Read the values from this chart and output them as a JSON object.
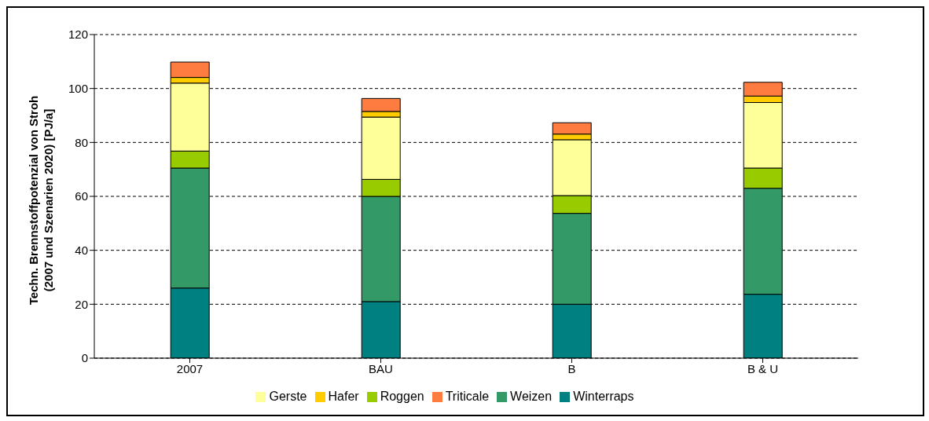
{
  "chart_data": {
    "type": "bar",
    "stacked": true,
    "ylabel": "Techn. Brennstoffpotenzial von Stroh (2007 und Szenarien 2020) [PJ/a]",
    "categories": [
      "2007",
      "BAU",
      "B",
      "B & U"
    ],
    "series": [
      {
        "name": "Winterraps",
        "color": "#008080",
        "values": [
          26,
          21,
          20,
          23.7
        ]
      },
      {
        "name": "Weizen",
        "color": "#339966",
        "values": [
          44.5,
          39,
          33.7,
          39.3
        ]
      },
      {
        "name": "Roggen",
        "color": "#99cc00",
        "values": [
          6.3,
          6.3,
          6.6,
          7.5
        ]
      },
      {
        "name": "Gerste",
        "color": "#ffff99",
        "values": [
          25.2,
          23.1,
          20.7,
          24.3
        ]
      },
      {
        "name": "Hafer",
        "color": "#ffcc00",
        "values": [
          2.1,
          2.1,
          2.1,
          2.4
        ]
      },
      {
        "name": "Triticale",
        "color": "#ff7c40",
        "values": [
          5.7,
          4.8,
          4.2,
          5.1
        ]
      }
    ],
    "ylim": [
      0,
      120
    ],
    "yticks": [
      0,
      20,
      40,
      60,
      80,
      100,
      120
    ],
    "grid": "y",
    "legend": "bottom"
  }
}
